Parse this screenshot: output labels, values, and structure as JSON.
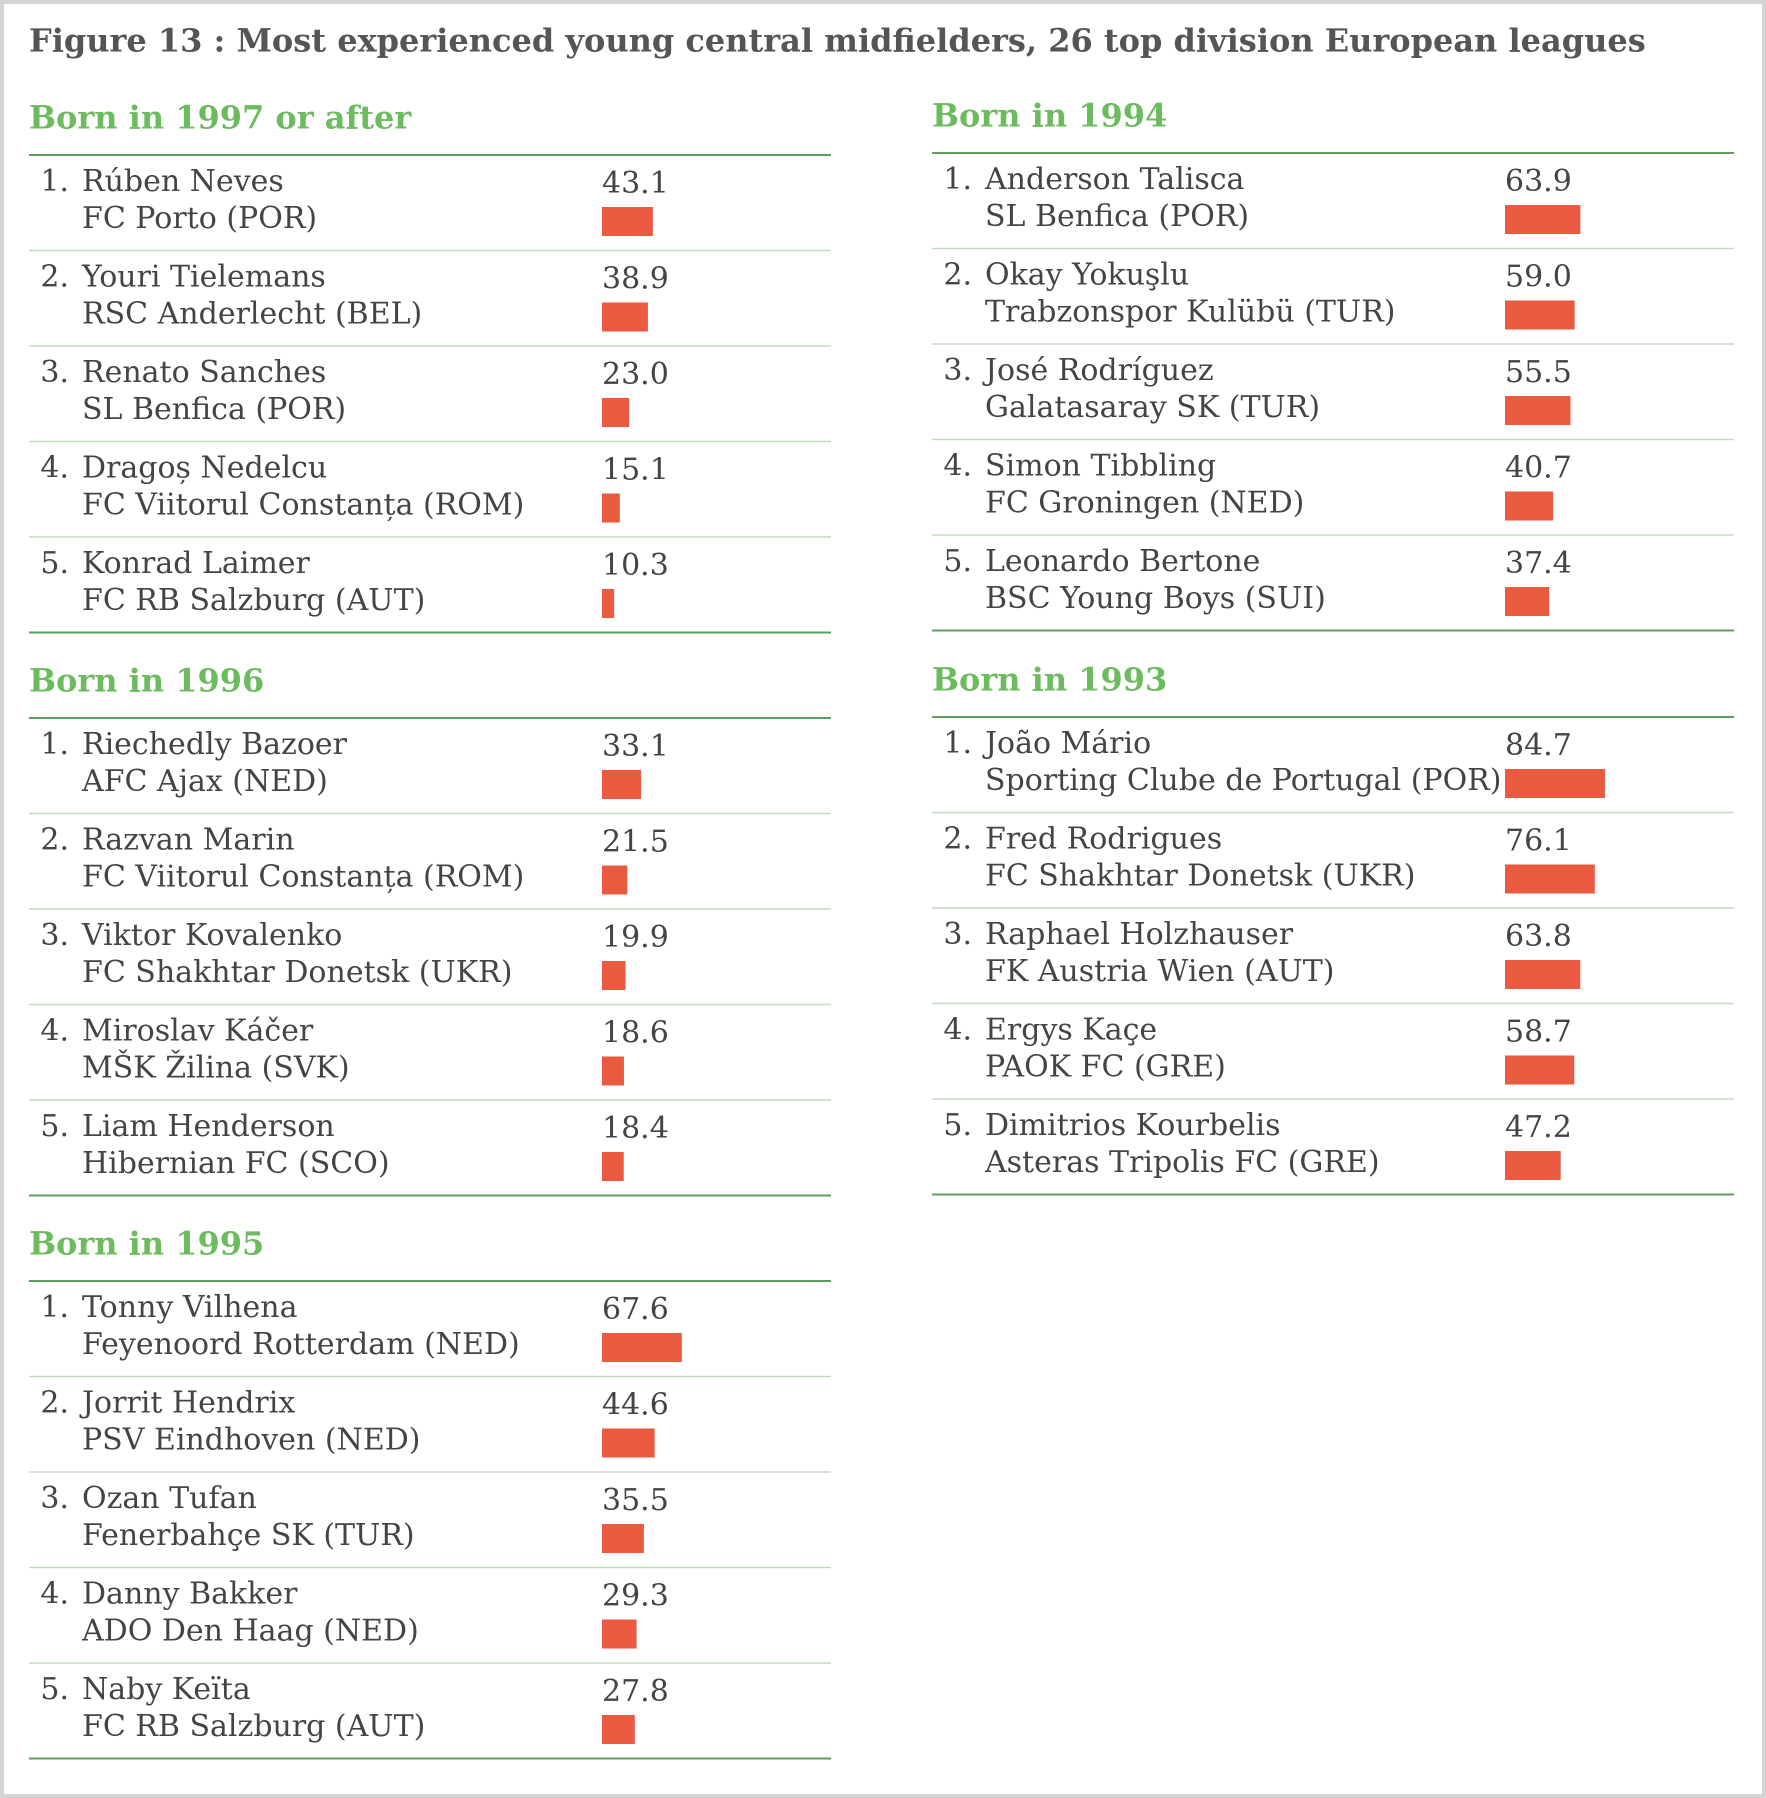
{
  "title": "Figure 13  : Most experienced young central midfielders, 26 top division European leagues",
  "chart_data": [
    {
      "type": "bar",
      "title": "Born in 1997 or after",
      "color": "#e95a40",
      "ranks": [
        "1.",
        "2.",
        "3.",
        "4.",
        "5."
      ],
      "categories": [
        "Rúben Neves",
        "Youri Tielemans",
        "Renato Sanches",
        "Dragoș Nedelcu",
        "Konrad Laimer"
      ],
      "clubs": [
        "FC Porto (POR)",
        "RSC Anderlecht (BEL)",
        "SL Benfica (POR)",
        "FC Viitorul Constanța (ROM)",
        "FC RB Salzburg (AUT)"
      ],
      "values": [
        43.1,
        38.9,
        23.0,
        15.1,
        10.3
      ],
      "value_labels": [
        "43.1",
        "38.9",
        "23.0",
        "15.1",
        "10.3"
      ]
    },
    {
      "type": "bar",
      "title": "Born in 1996",
      "color": "#e95a40",
      "ranks": [
        "1.",
        "2.",
        "3.",
        "4.",
        "5."
      ],
      "categories": [
        "Riechedly Bazoer",
        "Razvan Marin",
        "Viktor Kovalenko",
        "Miroslav Káčer",
        "Liam Henderson"
      ],
      "clubs": [
        "AFC Ajax (NED)",
        "FC Viitorul Constanța (ROM)",
        "FC Shakhtar Donetsk (UKR)",
        "MŠK Žilina (SVK)",
        "Hibernian FC (SCO)"
      ],
      "values": [
        33.1,
        21.5,
        19.9,
        18.6,
        18.4
      ],
      "value_labels": [
        "33.1",
        "21.5",
        "19.9",
        "18.6",
        "18.4"
      ]
    },
    {
      "type": "bar",
      "title": "Born in 1995",
      "color": "#e95a40",
      "ranks": [
        "1.",
        "2.",
        "3.",
        "4.",
        "5."
      ],
      "categories": [
        "Tonny Vilhena",
        "Jorrit Hendrix",
        "Ozan Tufan",
        "Danny Bakker",
        "Naby Keïta"
      ],
      "clubs": [
        "Feyenoord Rotterdam (NED)",
        "PSV Eindhoven (NED)",
        "Fenerbahçe SK (TUR)",
        "ADO Den Haag (NED)",
        "FC RB Salzburg (AUT)"
      ],
      "values": [
        67.6,
        44.6,
        35.5,
        29.3,
        27.8
      ],
      "value_labels": [
        "67.6",
        "44.6",
        "35.5",
        "29.3",
        "27.8"
      ]
    },
    {
      "type": "bar",
      "title": "Born in 1994",
      "color": "#e95a40",
      "ranks": [
        "1.",
        "2.",
        "3.",
        "4.",
        "5."
      ],
      "categories": [
        "Anderson Talisca",
        "Okay Yokuşlu",
        "José Rodríguez",
        "Simon Tibbling",
        "Leonardo Bertone"
      ],
      "clubs": [
        "SL Benfica (POR)",
        "Trabzonspor Kulübü (TUR)",
        "Galatasaray SK (TUR)",
        "FC Groningen (NED)",
        "BSC Young Boys (SUI)"
      ],
      "values": [
        63.9,
        59.0,
        55.5,
        40.7,
        37.4
      ],
      "value_labels": [
        "63.9",
        "59.0",
        "55.5",
        "40.7",
        "37.4"
      ]
    },
    {
      "type": "bar",
      "title": "Born in 1993",
      "color": "#e95a40",
      "ranks": [
        "1.",
        "2.",
        "3.",
        "4.",
        "5."
      ],
      "categories": [
        "João Mário",
        "Fred Rodrigues",
        "Raphael Holzhauser",
        "Ergys Kaçe",
        "Dimitrios Kourbelis"
      ],
      "clubs": [
        "Sporting Clube de Portugal (POR)",
        "FC Shakhtar Donetsk (UKR)",
        "FK Austria Wien (AUT)",
        "PAOK FC (GRE)",
        "Asteras Tripolis FC (GRE)"
      ],
      "values": [
        84.7,
        76.1,
        63.8,
        58.7,
        47.2
      ],
      "value_labels": [
        "84.7",
        "76.1",
        "63.8",
        "58.7",
        "47.2"
      ]
    }
  ]
}
